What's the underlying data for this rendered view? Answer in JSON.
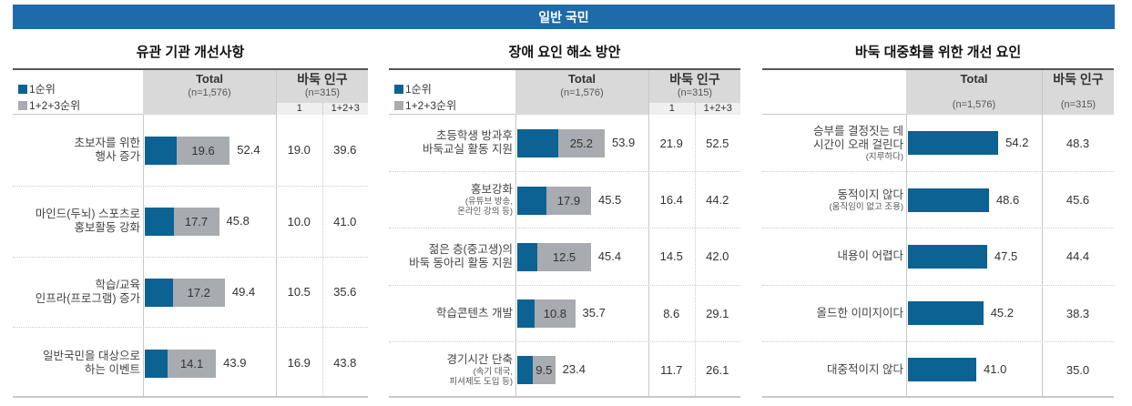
{
  "banner": {
    "title": "일반 국민"
  },
  "colors": {
    "banner": "#1f6aa8",
    "rank1": "#0b6293",
    "rank123": "#a8abb0",
    "header_bg": "#d9d9d9"
  },
  "legend": {
    "rank1": "1순위",
    "rank123": "1+2+3순위"
  },
  "headers": {
    "total": "Total",
    "total_n": "(n=1,576)",
    "baduk": "바둑 인구",
    "baduk_n": "(n=315)",
    "sub1": "1",
    "sub123": "1+2+3"
  },
  "panels": [
    {
      "title": "유관 기관 개선사항",
      "rows": [
        {
          "label": [
            "초보자를 위한",
            "행사 증가"
          ],
          "note": [],
          "rank1": "19.6",
          "rank123": "52.4",
          "b1": "19.0",
          "b123": "39.6"
        },
        {
          "label": [
            "마인드(두뇌) 스포츠로",
            "홍보활동 강화"
          ],
          "note": [],
          "rank1": "17.7",
          "rank123": "45.8",
          "b1": "10.0",
          "b123": "41.0"
        },
        {
          "label": [
            "학습/교육",
            "인프라(프로그램) 증가"
          ],
          "note": [],
          "rank1": "17.2",
          "rank123": "49.4",
          "b1": "10.5",
          "b123": "35.6"
        },
        {
          "label": [
            "일반국민을 대상으로",
            "하는 이벤트"
          ],
          "note": [],
          "rank1": "14.1",
          "rank123": "43.9",
          "b1": "16.9",
          "b123": "43.8"
        }
      ]
    },
    {
      "title": "장애 요인 해소 방안",
      "rows": [
        {
          "label": [
            "초등학생 방과후",
            "바둑교실 활동 지원"
          ],
          "note": [],
          "rank1": "25.2",
          "rank123": "53.9",
          "b1": "21.9",
          "b123": "52.5"
        },
        {
          "label": [
            "홍보강화"
          ],
          "note": [
            "(유튜브 방송,",
            "온라인 강의 등)"
          ],
          "rank1": "17.9",
          "rank123": "45.5",
          "b1": "16.4",
          "b123": "44.2"
        },
        {
          "label": [
            "젊은 층(중고생)의",
            "바둑 동아리 활동 지원"
          ],
          "note": [],
          "rank1": "12.5",
          "rank123": "45.4",
          "b1": "14.5",
          "b123": "42.0"
        },
        {
          "label": [
            "학습콘텐츠 개발"
          ],
          "note": [],
          "rank1": "10.8",
          "rank123": "35.7",
          "b1": "8.6",
          "b123": "29.1"
        },
        {
          "label": [
            "경기시간 단축"
          ],
          "note": [
            "(속기 대국,",
            "피셔제도 도입 등)"
          ],
          "rank1": "9.5",
          "rank123": "23.4",
          "b1": "11.7",
          "b123": "26.1"
        }
      ]
    },
    {
      "title": "바둑 대중화를 위한 개선 요인",
      "rows": [
        {
          "label": [
            "승부를 결정짓는 데",
            "시간이 오래 걸린다"
          ],
          "note": [
            "(지루하다)"
          ],
          "total": "54.2",
          "baduk": "48.3"
        },
        {
          "label": [
            "동적이지 않다"
          ],
          "note": [
            "(움직임이 없고 조용)"
          ],
          "total": "48.6",
          "baduk": "45.6"
        },
        {
          "label": [
            "내용이 어렵다"
          ],
          "note": [],
          "total": "47.5",
          "baduk": "44.4"
        },
        {
          "label": [
            "올드한 이미지이다"
          ],
          "note": [],
          "total": "45.2",
          "baduk": "38.3"
        },
        {
          "label": [
            "대중적이지 않다"
          ],
          "note": [],
          "total": "41.0",
          "baduk": "35.0"
        }
      ]
    }
  ],
  "chart_data": [
    {
      "type": "bar",
      "title": "유관 기관 개선사항",
      "orientation": "horizontal",
      "categories": [
        "초보자를 위한 행사 증가",
        "마인드(두뇌) 스포츠로 홍보활동 강화",
        "학습/교육 인프라(프로그램) 증가",
        "일반국민을 대상으로 하는 이벤트"
      ],
      "series": [
        {
          "name": "Total 1순위",
          "values": [
            19.6,
            17.7,
            17.2,
            14.1
          ]
        },
        {
          "name": "Total 1+2+3순위",
          "values": [
            52.4,
            45.8,
            49.4,
            43.9
          ]
        },
        {
          "name": "바둑 인구 1",
          "values": [
            19.0,
            10.0,
            10.5,
            16.9
          ]
        },
        {
          "name": "바둑 인구 1+2+3",
          "values": [
            39.6,
            41.0,
            35.6,
            43.8
          ]
        }
      ],
      "legend": [
        "1순위",
        "1+2+3순위"
      ],
      "notes": "Total (n=1,576); 바둑 인구 (n=315)"
    },
    {
      "type": "bar",
      "title": "장애 요인 해소 방안",
      "orientation": "horizontal",
      "categories": [
        "초등학생 방과후 바둑교실 활동 지원",
        "홍보강화 (유튜브 방송, 온라인 강의 등)",
        "젊은 층(중고생)의 바둑 동아리 활동 지원",
        "학습콘텐츠 개발",
        "경기시간 단축 (속기 대국, 피셔제도 도입 등)"
      ],
      "series": [
        {
          "name": "Total 1순위",
          "values": [
            25.2,
            17.9,
            12.5,
            10.8,
            9.5
          ]
        },
        {
          "name": "Total 1+2+3순위",
          "values": [
            53.9,
            45.5,
            45.4,
            35.7,
            23.4
          ]
        },
        {
          "name": "바둑 인구 1",
          "values": [
            21.9,
            16.4,
            14.5,
            8.6,
            11.7
          ]
        },
        {
          "name": "바둑 인구 1+2+3",
          "values": [
            52.5,
            44.2,
            42.0,
            29.1,
            26.1
          ]
        }
      ],
      "legend": [
        "1순위",
        "1+2+3순위"
      ],
      "notes": "Total (n=1,576); 바둑 인구 (n=315)"
    },
    {
      "type": "bar",
      "title": "바둑 대중화를 위한 개선 요인",
      "orientation": "horizontal",
      "categories": [
        "승부를 결정짓는 데 시간이 오래 걸린다 (지루하다)",
        "동적이지 않다 (움직임이 없고 조용)",
        "내용이 어렵다",
        "올드한 이미지이다",
        "대중적이지 않다"
      ],
      "series": [
        {
          "name": "Total",
          "values": [
            54.2,
            48.6,
            47.5,
            45.2,
            41.0
          ]
        },
        {
          "name": "바둑 인구",
          "values": [
            48.3,
            45.6,
            44.4,
            38.3,
            35.0
          ]
        }
      ],
      "notes": "Total (n=1,576); 바둑 인구 (n=315)"
    }
  ]
}
